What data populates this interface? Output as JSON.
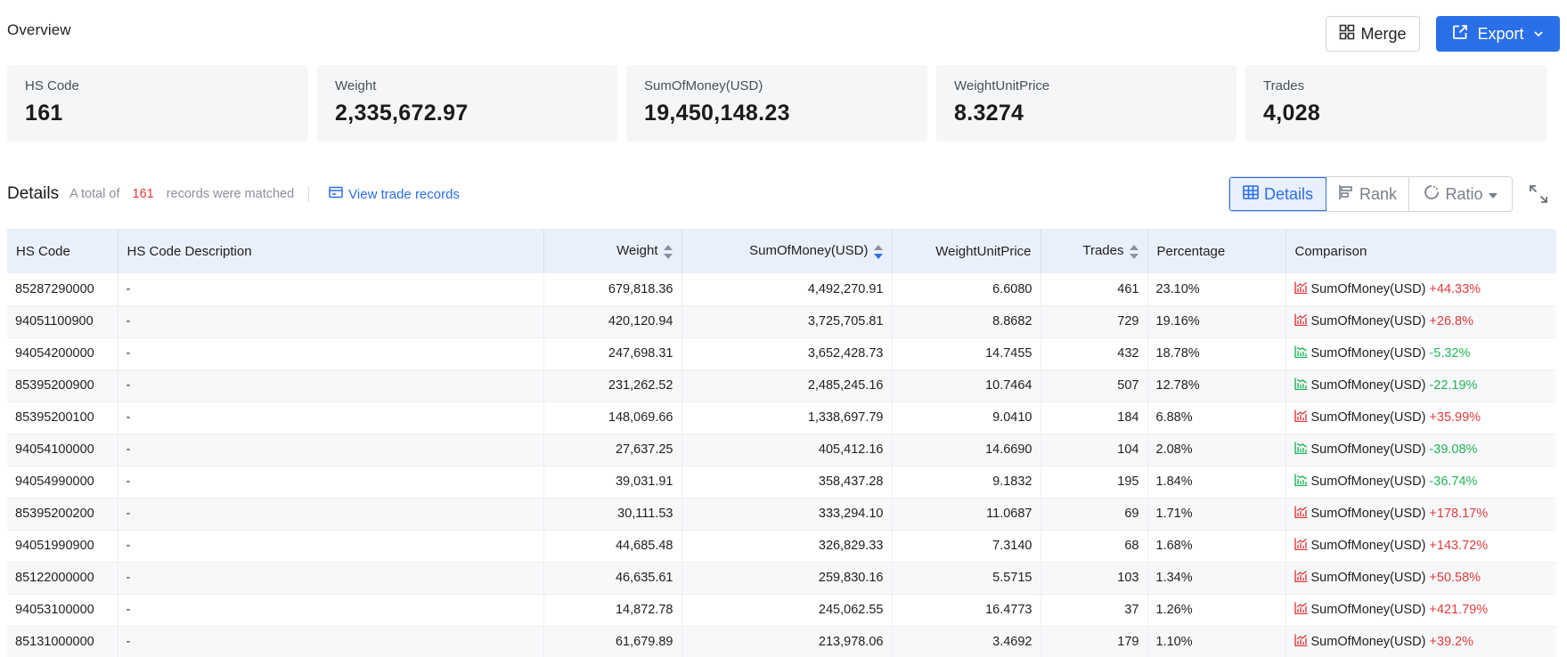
{
  "overview": {
    "title": "Overview"
  },
  "buttons": {
    "merge": "Merge",
    "export": "Export"
  },
  "stats": [
    {
      "label": "HS Code",
      "value": "161"
    },
    {
      "label": "Weight",
      "value": "2,335,672.97"
    },
    {
      "label": "SumOfMoney(USD)",
      "value": "19,450,148.23"
    },
    {
      "label": "WeightUnitPrice",
      "value": "8.3274"
    },
    {
      "label": "Trades",
      "value": "4,028"
    }
  ],
  "details": {
    "title": "Details",
    "note_prefix": "A total of",
    "count": "161",
    "note_suffix": "records were matched",
    "view_link": "View trade records"
  },
  "view_tabs": {
    "details": "Details",
    "rank": "Rank",
    "ratio": "Ratio"
  },
  "table": {
    "headers": [
      "HS Code",
      "HS Code Description",
      "Weight",
      "SumOfMoney(USD)",
      "WeightUnitPrice",
      "Trades",
      "Percentage",
      "Comparison"
    ],
    "comparison_label": "SumOfMoney(USD)",
    "rows": [
      {
        "code": "85287290000",
        "desc": "-",
        "weight": "679,818.36",
        "money": "4,492,270.91",
        "unit": "6.6080",
        "trades": "461",
        "pct": "23.10%",
        "change": "+44.33%",
        "trend": "up"
      },
      {
        "code": "94051100900",
        "desc": "-",
        "weight": "420,120.94",
        "money": "3,725,705.81",
        "unit": "8.8682",
        "trades": "729",
        "pct": "19.16%",
        "change": "+26.8%",
        "trend": "up"
      },
      {
        "code": "94054200000",
        "desc": "-",
        "weight": "247,698.31",
        "money": "3,652,428.73",
        "unit": "14.7455",
        "trades": "432",
        "pct": "18.78%",
        "change": "-5.32%",
        "trend": "down"
      },
      {
        "code": "85395200900",
        "desc": "-",
        "weight": "231,262.52",
        "money": "2,485,245.16",
        "unit": "10.7464",
        "trades": "507",
        "pct": "12.78%",
        "change": "-22.19%",
        "trend": "down"
      },
      {
        "code": "85395200100",
        "desc": "-",
        "weight": "148,069.66",
        "money": "1,338,697.79",
        "unit": "9.0410",
        "trades": "184",
        "pct": "6.88%",
        "change": "+35.99%",
        "trend": "up"
      },
      {
        "code": "94054100000",
        "desc": "-",
        "weight": "27,637.25",
        "money": "405,412.16",
        "unit": "14.6690",
        "trades": "104",
        "pct": "2.08%",
        "change": "-39.08%",
        "trend": "down"
      },
      {
        "code": "94054990000",
        "desc": "-",
        "weight": "39,031.91",
        "money": "358,437.28",
        "unit": "9.1832",
        "trades": "195",
        "pct": "1.84%",
        "change": "-36.74%",
        "trend": "down"
      },
      {
        "code": "85395200200",
        "desc": "-",
        "weight": "30,111.53",
        "money": "333,294.10",
        "unit": "11.0687",
        "trades": "69",
        "pct": "1.71%",
        "change": "+178.17%",
        "trend": "up"
      },
      {
        "code": "94051990900",
        "desc": "-",
        "weight": "44,685.48",
        "money": "326,829.33",
        "unit": "7.3140",
        "trades": "68",
        "pct": "1.68%",
        "change": "+143.72%",
        "trend": "up"
      },
      {
        "code": "85122000000",
        "desc": "-",
        "weight": "46,635.61",
        "money": "259,830.16",
        "unit": "5.5715",
        "trades": "103",
        "pct": "1.34%",
        "change": "+50.58%",
        "trend": "up"
      },
      {
        "code": "94053100000",
        "desc": "-",
        "weight": "14,872.78",
        "money": "245,062.55",
        "unit": "16.4773",
        "trades": "37",
        "pct": "1.26%",
        "change": "+421.79%",
        "trend": "up"
      },
      {
        "code": "85131000000",
        "desc": "-",
        "weight": "61,679.89",
        "money": "213,978.06",
        "unit": "3.4692",
        "trades": "179",
        "pct": "1.10%",
        "change": "+39.2%",
        "trend": "up"
      }
    ]
  },
  "colors": {
    "accent": "#2a6fe8",
    "up": "#e33a3a",
    "down": "#22b45a",
    "header_bg": "#eaf0fb"
  }
}
